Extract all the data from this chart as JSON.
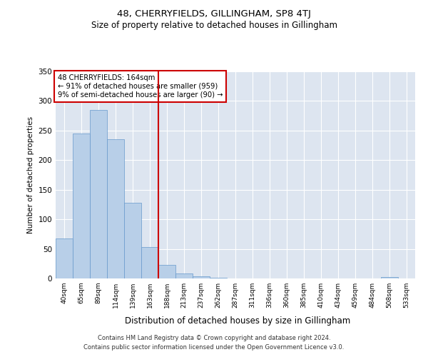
{
  "title": "48, CHERRYFIELDS, GILLINGHAM, SP8 4TJ",
  "subtitle": "Size of property relative to detached houses in Gillingham",
  "xlabel": "Distribution of detached houses by size in Gillingham",
  "ylabel": "Number of detached properties",
  "bin_labels": [
    "40sqm",
    "65sqm",
    "89sqm",
    "114sqm",
    "139sqm",
    "163sqm",
    "188sqm",
    "213sqm",
    "237sqm",
    "262sqm",
    "287sqm",
    "311sqm",
    "336sqm",
    "360sqm",
    "385sqm",
    "410sqm",
    "434sqm",
    "459sqm",
    "484sqm",
    "508sqm",
    "533sqm"
  ],
  "bar_values": [
    68,
    245,
    285,
    235,
    128,
    53,
    23,
    8,
    4,
    1,
    0,
    0,
    0,
    0,
    0,
    0,
    0,
    0,
    0,
    3,
    0
  ],
  "bar_color": "#b8cfe8",
  "bar_edgecolor": "#6699cc",
  "ylim": [
    0,
    350
  ],
  "yticks": [
    0,
    50,
    100,
    150,
    200,
    250,
    300,
    350
  ],
  "red_line_x": 5.5,
  "annotation_title": "48 CHERRYFIELDS: 164sqm",
  "annotation_line1": "← 91% of detached houses are smaller (959)",
  "annotation_line2": "9% of semi-detached houses are larger (90) →",
  "annotation_box_color": "#ffffff",
  "annotation_box_edgecolor": "#cc0000",
  "red_line_color": "#cc0000",
  "background_color": "#dde5f0",
  "footer1": "Contains HM Land Registry data © Crown copyright and database right 2024.",
  "footer2": "Contains public sector information licensed under the Open Government Licence v3.0."
}
